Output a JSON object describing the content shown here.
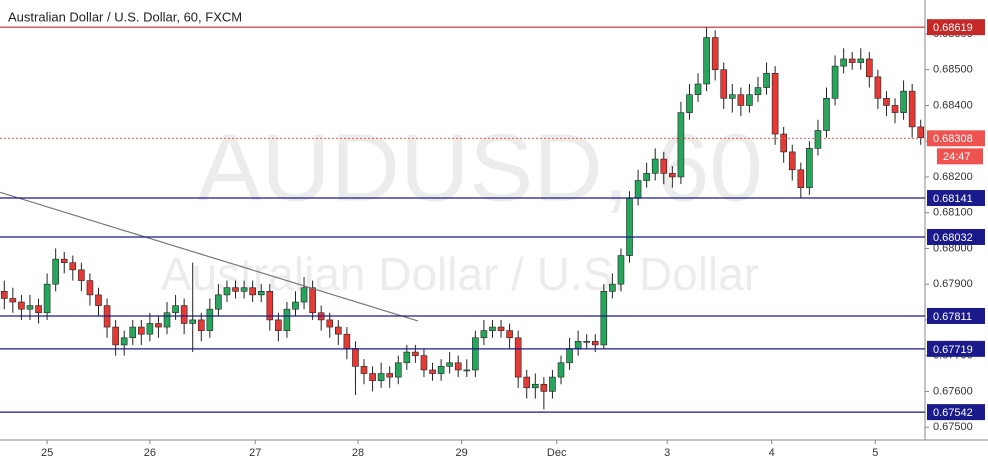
{
  "chart_data": {
    "type": "candlestick",
    "title": "Australian Dollar / U.S. Dollar, 60, FXCM",
    "watermark": "AUDUSD, 60",
    "watermark_subtitle": "Australian Dollar / U.S. Dollar",
    "up_color": "#26a65b",
    "down_color": "#e53935",
    "open": [
      0.6788,
      0.6786,
      0.6785,
      0.6783,
      0.6784,
      0.6782,
      0.679,
      0.6797,
      0.6796,
      0.6794,
      0.6791,
      0.6787,
      0.6784,
      0.6778,
      0.6773,
      0.6775,
      0.6778,
      0.6776,
      0.6779,
      0.6778,
      0.6782,
      0.6784,
      0.6779,
      0.678,
      0.6777,
      0.6783,
      0.6787,
      0.6789,
      0.6788,
      0.6789,
      0.6787,
      0.6788,
      0.678,
      0.6777,
      0.6783,
      0.6785,
      0.6789,
      0.6782,
      0.678,
      0.6778,
      0.6776,
      0.6772,
      0.6767,
      0.6765,
      0.6763,
      0.6765,
      0.6764,
      0.6768,
      0.6771,
      0.677,
      0.6766,
      0.6765,
      0.6767,
      0.6768,
      0.6766,
      0.6766,
      0.6775,
      0.6777,
      0.6778,
      0.6777,
      0.6775,
      0.6764,
      0.6761,
      0.6762,
      0.676,
      0.6764,
      0.6768,
      0.6772,
      0.6774,
      0.6774,
      0.6773,
      0.6788,
      0.679,
      0.6798,
      0.6814,
      0.6819,
      0.6821,
      0.6825,
      0.6821,
      0.682,
      0.6838,
      0.6843,
      0.6846,
      0.6859,
      0.685,
      0.6842,
      0.6843,
      0.684,
      0.6843,
      0.6845,
      0.6849,
      0.6832,
      0.6827,
      0.6822,
      0.6817,
      0.6828,
      0.6833,
      0.6842,
      0.6851,
      0.6853,
      0.6852,
      0.6853,
      0.6848,
      0.6842,
      0.684,
      0.6838,
      0.6844,
      0.6834
    ],
    "high": [
      0.6791,
      0.6789,
      0.6787,
      0.6787,
      0.6786,
      0.6793,
      0.68,
      0.6799,
      0.6798,
      0.6796,
      0.6793,
      0.6789,
      0.6786,
      0.678,
      0.6777,
      0.678,
      0.678,
      0.6782,
      0.6781,
      0.6785,
      0.6787,
      0.6786,
      0.6796,
      0.6782,
      0.6786,
      0.679,
      0.6791,
      0.6791,
      0.6791,
      0.6791,
      0.679,
      0.679,
      0.6782,
      0.6785,
      0.6788,
      0.6792,
      0.6791,
      0.6784,
      0.6782,
      0.678,
      0.6778,
      0.6774,
      0.6769,
      0.6767,
      0.6768,
      0.6767,
      0.677,
      0.6773,
      0.6773,
      0.6772,
      0.6768,
      0.6769,
      0.6771,
      0.677,
      0.6769,
      0.6777,
      0.678,
      0.678,
      0.678,
      0.6779,
      0.6777,
      0.6766,
      0.6765,
      0.6764,
      0.6766,
      0.677,
      0.6775,
      0.6777,
      0.6776,
      0.6776,
      0.679,
      0.6793,
      0.68,
      0.6816,
      0.6822,
      0.6824,
      0.6828,
      0.6827,
      0.6823,
      0.6841,
      0.6846,
      0.6849,
      0.6862,
      0.6861,
      0.6852,
      0.6846,
      0.6845,
      0.6846,
      0.6848,
      0.6852,
      0.6851,
      0.6834,
      0.6829,
      0.6824,
      0.683,
      0.6836,
      0.6845,
      0.6854,
      0.6856,
      0.6855,
      0.6856,
      0.6855,
      0.685,
      0.6844,
      0.6842,
      0.6847,
      0.6846,
      0.6836
    ],
    "low": [
      0.6783,
      0.6782,
      0.678,
      0.678,
      0.6779,
      0.678,
      0.6788,
      0.6793,
      0.6791,
      0.6788,
      0.6784,
      0.6781,
      0.6775,
      0.677,
      0.677,
      0.6773,
      0.6773,
      0.6774,
      0.6775,
      0.6776,
      0.678,
      0.6776,
      0.6771,
      0.6774,
      0.6775,
      0.6781,
      0.6785,
      0.6786,
      0.6786,
      0.6785,
      0.6785,
      0.6777,
      0.6774,
      0.6775,
      0.6781,
      0.6783,
      0.678,
      0.6777,
      0.6775,
      0.6773,
      0.6769,
      0.6759,
      0.6762,
      0.676,
      0.6761,
      0.6761,
      0.6762,
      0.6766,
      0.6768,
      0.6764,
      0.6763,
      0.6763,
      0.6765,
      0.6764,
      0.6764,
      0.6764,
      0.6773,
      0.6775,
      0.6775,
      0.6772,
      0.6761,
      0.6758,
      0.6758,
      0.6755,
      0.6758,
      0.6762,
      0.6766,
      0.677,
      0.6772,
      0.6771,
      0.6772,
      0.6786,
      0.6788,
      0.6796,
      0.6812,
      0.6817,
      0.6819,
      0.6818,
      0.6817,
      0.6818,
      0.6836,
      0.6841,
      0.6844,
      0.6847,
      0.6839,
      0.6838,
      0.6837,
      0.6838,
      0.6841,
      0.6843,
      0.6829,
      0.6824,
      0.6819,
      0.6814,
      0.6815,
      0.6826,
      0.6831,
      0.684,
      0.6849,
      0.685,
      0.685,
      0.6845,
      0.6839,
      0.6837,
      0.6835,
      0.6836,
      0.6831,
      0.6829
    ],
    "close": [
      0.6786,
      0.6785,
      0.6783,
      0.6784,
      0.6782,
      0.679,
      0.6797,
      0.6796,
      0.6794,
      0.6791,
      0.6787,
      0.6784,
      0.6778,
      0.6773,
      0.6775,
      0.6778,
      0.6776,
      0.6779,
      0.6778,
      0.6782,
      0.6784,
      0.6779,
      0.678,
      0.6777,
      0.6783,
      0.6787,
      0.6789,
      0.6788,
      0.6789,
      0.6787,
      0.6788,
      0.678,
      0.6777,
      0.6783,
      0.6785,
      0.6789,
      0.6782,
      0.678,
      0.6778,
      0.6776,
      0.6772,
      0.6767,
      0.6765,
      0.6763,
      0.6765,
      0.6764,
      0.6768,
      0.6771,
      0.677,
      0.6766,
      0.6765,
      0.6767,
      0.6768,
      0.6766,
      0.6766,
      0.6775,
      0.6777,
      0.6778,
      0.6777,
      0.6775,
      0.6764,
      0.6761,
      0.6762,
      0.676,
      0.6764,
      0.6768,
      0.6772,
      0.6774,
      0.6774,
      0.6773,
      0.6788,
      0.679,
      0.6798,
      0.6814,
      0.6819,
      0.6821,
      0.6825,
      0.6821,
      0.682,
      0.6838,
      0.6843,
      0.6846,
      0.6859,
      0.685,
      0.6842,
      0.6843,
      0.684,
      0.6843,
      0.6845,
      0.6849,
      0.6832,
      0.6827,
      0.6822,
      0.6817,
      0.6828,
      0.6833,
      0.6842,
      0.6851,
      0.6853,
      0.6852,
      0.6853,
      0.6848,
      0.6842,
      0.684,
      0.6838,
      0.6844,
      0.6834,
      0.6831
    ],
    "xlim": [
      0,
      108
    ],
    "xticks": [
      {
        "value": 5.5,
        "label": "25"
      },
      {
        "value": 17.5,
        "label": "26"
      },
      {
        "value": 29.8,
        "label": "27"
      },
      {
        "value": 41.8,
        "label": "28"
      },
      {
        "value": 53.9,
        "label": "29"
      },
      {
        "value": 65,
        "label": "Dec"
      },
      {
        "value": 77.9,
        "label": "3"
      },
      {
        "value": 90.1,
        "label": "4"
      },
      {
        "value": 102.2,
        "label": "5"
      }
    ],
    "ylim": [
      0.67464,
      0.68695
    ],
    "yticks": [
      {
        "value": 0.675,
        "label": "0.67500"
      },
      {
        "value": 0.676,
        "label": "0.67600"
      },
      {
        "value": 0.677,
        "label": "0.67700"
      },
      {
        "value": 0.678,
        "label": "0.67800"
      },
      {
        "value": 0.679,
        "label": "0.67900"
      },
      {
        "value": 0.68,
        "label": "0.68000"
      },
      {
        "value": 0.681,
        "label": "0.68100"
      },
      {
        "value": 0.682,
        "label": "0.68200"
      },
      {
        "value": 0.683,
        "label": "0.68300"
      },
      {
        "value": 0.684,
        "label": "0.68400"
      },
      {
        "value": 0.685,
        "label": "0.68500"
      },
      {
        "value": 0.686,
        "label": "0.68600"
      }
    ],
    "levels": [
      {
        "value": 0.68619,
        "color": "#c62828"
      },
      {
        "value": 0.68141,
        "color": "#1a1a8c"
      },
      {
        "value": 0.68032,
        "color": "#1a1a8c"
      },
      {
        "value": 0.67811,
        "color": "#1a1a8c"
      },
      {
        "value": 0.67719,
        "color": "#1a1a8c"
      },
      {
        "value": 0.67542,
        "color": "#1a1a8c"
      }
    ],
    "last_price": {
      "value": 0.68308,
      "countdown": "24:47",
      "color": "#ef5350"
    },
    "trendline": {
      "x": [
        0,
        48.8
      ],
      "y": [
        0.68157,
        0.67797
      ],
      "color": "#777777"
    }
  }
}
